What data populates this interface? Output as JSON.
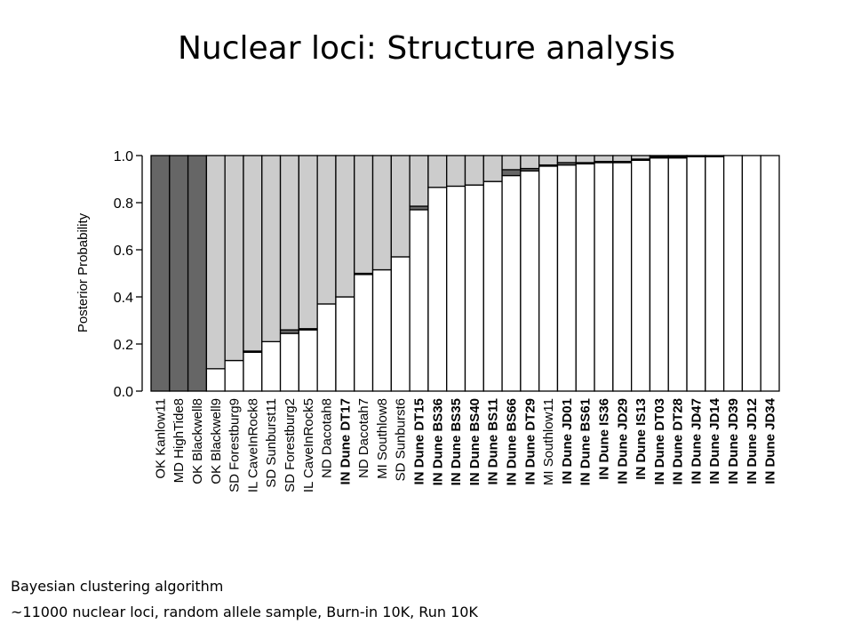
{
  "slide": {
    "title": "Nuclear loci: Structure analysis",
    "caption_line1": "Bayesian clustering algorithm",
    "caption_line2": "~11000 nuclear loci, random allele sample, Burn-in 10K, Run 10K"
  },
  "colors": {
    "cluster1": "#666666",
    "cluster2": "#cccccc",
    "cluster3": "#ffffff",
    "outline": "#000000"
  },
  "chart_data": {
    "type": "bar",
    "stacked": true,
    "title": "",
    "xlabel": "",
    "ylabel": "Posterior Probability",
    "ylim": [
      0,
      1.0
    ],
    "yticks": [
      "0.0",
      "0.2",
      "0.4",
      "0.6",
      "0.8",
      "1.0"
    ],
    "grid": false,
    "categories": [
      "OK Kanlow11",
      "MD HighTide8",
      "OK Blackwell8",
      "OK Blackwell9",
      "SD Forestburg9",
      "IL CaveInRock8",
      "SD Sunburst11",
      "SD Forestburg2",
      "IL CaveInRock5",
      "ND Dacotah8",
      "IN Dune DT17",
      "ND Dacotah7",
      "MI Southlow8",
      "SD Sunburst6",
      "IN Dune DT15",
      "IN Dune BS36",
      "IN Dune BS35",
      "IN Dune BS40",
      "IN Dune BS11",
      "IN Dune BS66",
      "IN Dune DT29",
      "MI Southlow11",
      "IN Dune JD01",
      "IN Dune BS61",
      "IN Dune IS36",
      "IN Dune JD29",
      "IN Dune IS13",
      "IN Dune DT03",
      "IN Dune DT28",
      "IN Dune JD47",
      "IN Dune JD14",
      "IN Dune JD39",
      "IN Dune JD12",
      "IN Dune JD34"
    ],
    "bold_categories": [
      "IN Dune DT17",
      "IN Dune DT15",
      "IN Dune BS36",
      "IN Dune BS35",
      "IN Dune BS40",
      "IN Dune BS11",
      "IN Dune BS66",
      "IN Dune DT29",
      "IN Dune JD01",
      "IN Dune BS61",
      "IN Dune IS36",
      "IN Dune JD29",
      "IN Dune IS13",
      "IN Dune DT03",
      "IN Dune DT28",
      "IN Dune JD47",
      "IN Dune JD14",
      "IN Dune JD39",
      "IN Dune JD12",
      "IN Dune JD34"
    ],
    "series": [
      {
        "color": "#ffffff",
        "values": [
          0.0,
          0.0,
          0.0,
          0.095,
          0.13,
          0.165,
          0.21,
          0.245,
          0.26,
          0.37,
          0.4,
          0.495,
          0.515,
          0.57,
          0.77,
          0.865,
          0.87,
          0.875,
          0.89,
          0.915,
          0.935,
          0.955,
          0.96,
          0.965,
          0.97,
          0.97,
          0.98,
          0.99,
          0.99,
          0.995,
          0.995,
          1.0,
          1.0,
          1.0
        ]
      },
      {
        "color": "#666666",
        "values": [
          1.0,
          1.0,
          1.0,
          0.0,
          0.0,
          0.005,
          0.0,
          0.015,
          0.005,
          0.0,
          0.0,
          0.005,
          0.0,
          0.0,
          0.015,
          0.0,
          0.0,
          0.0,
          0.0,
          0.025,
          0.01,
          0.005,
          0.01,
          0.005,
          0.005,
          0.005,
          0.005,
          0.005,
          0.005,
          0.0,
          0.0,
          0.0,
          0.0,
          0.0
        ]
      },
      {
        "color": "#cccccc",
        "values": [
          0.0,
          0.0,
          0.0,
          0.905,
          0.87,
          0.83,
          0.79,
          0.74,
          0.735,
          0.63,
          0.6,
          0.5,
          0.485,
          0.43,
          0.215,
          0.135,
          0.13,
          0.125,
          0.11,
          0.06,
          0.055,
          0.04,
          0.03,
          0.03,
          0.025,
          0.025,
          0.015,
          0.005,
          0.005,
          0.005,
          0.005,
          0.0,
          0.0,
          0.0
        ]
      }
    ]
  }
}
